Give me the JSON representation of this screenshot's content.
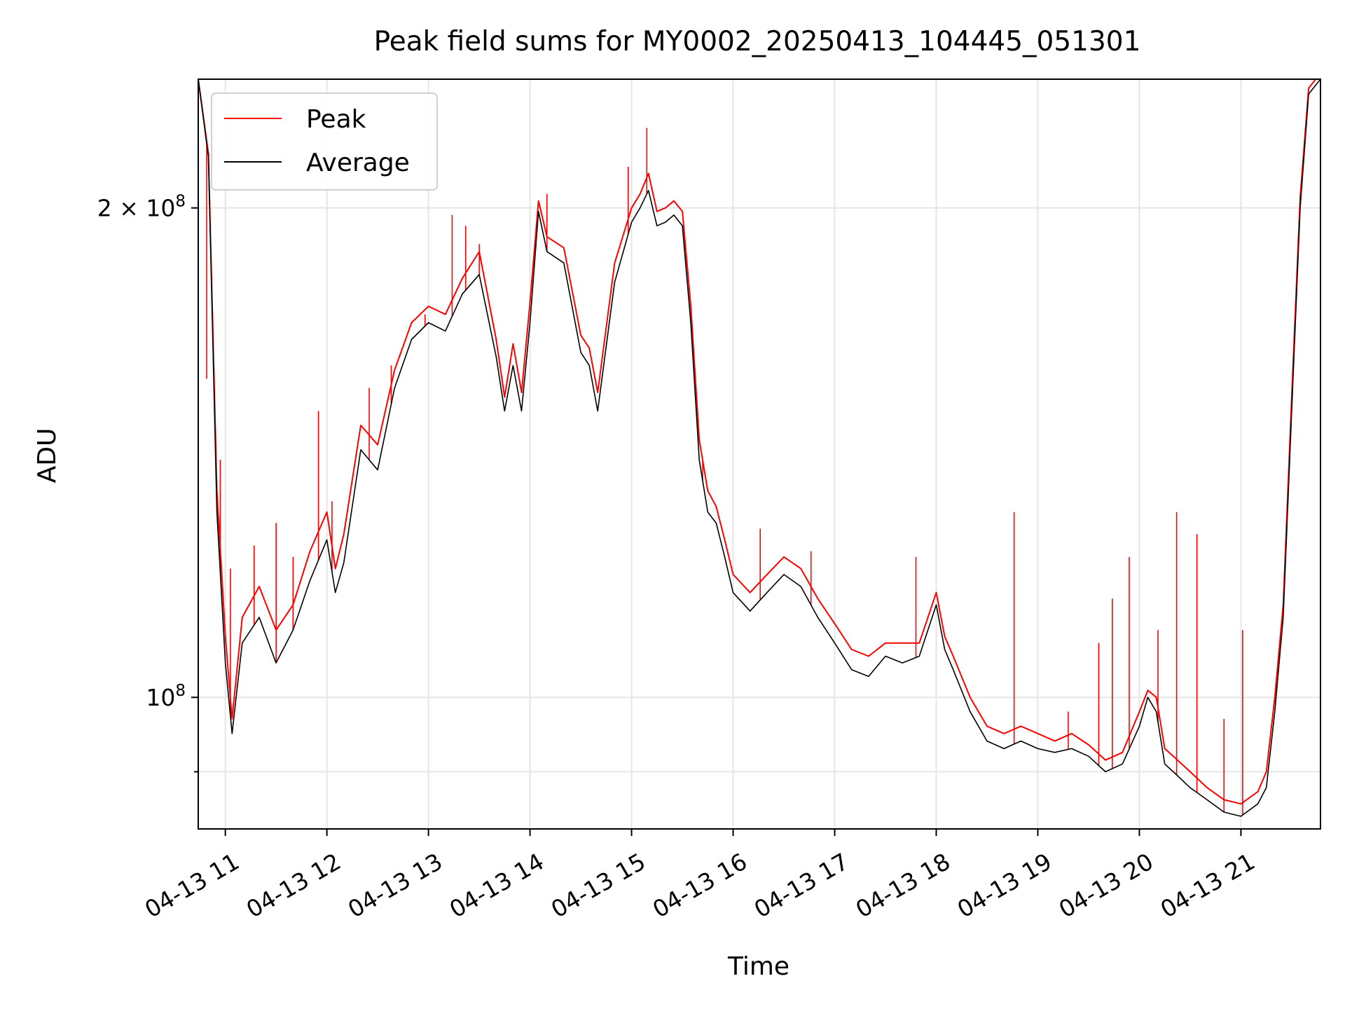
{
  "chart_data": {
    "type": "line",
    "title": "Peak field sums for MY0002_20250413_104445_051301",
    "xlabel": "Time",
    "ylabel": "ADU",
    "yscale": "log",
    "ylim": [
      83000000.0,
      240000000.0
    ],
    "xlim": [
      "04-13 10:44",
      "04-13 21:47"
    ],
    "grid": true,
    "legend_position": "top-left",
    "x_ticks": [
      "04-13 11",
      "04-13 12",
      "04-13 13",
      "04-13 14",
      "04-13 15",
      "04-13 16",
      "04-13 17",
      "04-13 18",
      "04-13 19",
      "04-13 20",
      "04-13 21"
    ],
    "y_ticks": [
      {
        "value": 100000000,
        "base": "10",
        "exp": "8",
        "coef": ""
      },
      {
        "value": 200000000,
        "base": "10",
        "exp": "8",
        "coef": "2 × "
      }
    ],
    "x": [
      "10:44",
      "10:50",
      "10:55",
      "11:00",
      "11:04",
      "11:10",
      "11:20",
      "11:30",
      "11:40",
      "11:50",
      "12:00",
      "12:05",
      "12:10",
      "12:20",
      "12:30",
      "12:40",
      "12:50",
      "13:00",
      "13:10",
      "13:20",
      "13:30",
      "13:40",
      "13:45",
      "13:50",
      "13:55",
      "14:00",
      "14:05",
      "14:10",
      "14:20",
      "14:30",
      "14:35",
      "14:40",
      "14:50",
      "15:00",
      "15:05",
      "15:10",
      "15:15",
      "15:20",
      "15:25",
      "15:30",
      "15:35",
      "15:40",
      "15:45",
      "15:50",
      "15:55",
      "16:00",
      "16:10",
      "16:20",
      "16:30",
      "16:40",
      "16:50",
      "17:00",
      "17:10",
      "17:20",
      "17:30",
      "17:40",
      "17:50",
      "18:00",
      "18:05",
      "18:10",
      "18:20",
      "18:30",
      "18:40",
      "18:50",
      "19:00",
      "19:10",
      "19:20",
      "19:30",
      "19:40",
      "19:50",
      "20:00",
      "20:05",
      "20:10",
      "20:15",
      "20:20",
      "20:30",
      "20:40",
      "20:50",
      "21:00",
      "21:10",
      "21:15",
      "21:20",
      "21:25",
      "21:30",
      "21:35",
      "21:40",
      "21:47"
    ],
    "series": [
      {
        "name": "Average",
        "color": "#000000",
        "values": [
          240000000,
          215000000,
          130000000,
          105000000,
          95000000,
          108000000,
          112000000,
          105000000,
          110000000,
          118000000,
          125000000,
          116000000,
          121000000,
          142000000,
          138000000,
          155000000,
          166000000,
          170000000,
          168000000,
          177000000,
          182000000,
          162000000,
          150000000,
          160000000,
          150000000,
          170000000,
          199000000,
          188000000,
          185000000,
          163000000,
          160000000,
          150000000,
          180000000,
          196000000,
          200000000,
          205000000,
          195000000,
          196000000,
          198000000,
          195000000,
          170000000,
          140000000,
          130000000,
          128000000,
          122000000,
          116000000,
          113000000,
          116000000,
          119000000,
          117000000,
          112000000,
          108000000,
          104000000,
          103000000,
          106000000,
          105000000,
          106000000,
          114000000,
          107000000,
          104000000,
          98000000,
          94000000,
          93000000,
          94000000,
          93000000,
          92500000,
          93000000,
          92000000,
          90000000,
          91000000,
          96000000,
          100000000,
          98000000,
          91000000,
          90000000,
          88000000,
          86500000,
          85000000,
          84500000,
          86000000,
          88000000,
          98000000,
          112000000,
          150000000,
          200000000,
          235000000,
          240000000
        ]
      },
      {
        "name": "Peak",
        "color": "#ff0000",
        "values": [
          240000000,
          216000000,
          134000000,
          109000000,
          97000000,
          112000000,
          117000000,
          110000000,
          114000000,
          123000000,
          130000000,
          120000000,
          126000000,
          147000000,
          143000000,
          159000000,
          170000000,
          174000000,
          172000000,
          181000000,
          188000000,
          166000000,
          153000000,
          165000000,
          154000000,
          175000000,
          202000000,
          192000000,
          189000000,
          167000000,
          164000000,
          154000000,
          185000000,
          200000000,
          204000000,
          210000000,
          199000000,
          200000000,
          202000000,
          199000000,
          174000000,
          144000000,
          134000000,
          131000000,
          125000000,
          119000000,
          116000000,
          119000000,
          122000000,
          120000000,
          115000000,
          111000000,
          107000000,
          106000000,
          108000000,
          108000000,
          108000000,
          116000000,
          109000000,
          106000000,
          100000000,
          96000000,
          95000000,
          96000000,
          95000000,
          94000000,
          95000000,
          93500000,
          91500000,
          92500000,
          98000000,
          101000000,
          100000000,
          93000000,
          92000000,
          90000000,
          88000000,
          86500000,
          86000000,
          87500000,
          90000000,
          100000000,
          114000000,
          153000000,
          203000000,
          237000000,
          242000000
        ]
      }
    ],
    "peak_spikes": [
      {
        "x": "10:49",
        "y": 157000000
      },
      {
        "x": "10:57",
        "y": 140000000
      },
      {
        "x": "11:03",
        "y": 120000000
      },
      {
        "x": "11:17",
        "y": 124000000
      },
      {
        "x": "11:30",
        "y": 128000000
      },
      {
        "x": "11:40",
        "y": 122000000
      },
      {
        "x": "11:55",
        "y": 150000000
      },
      {
        "x": "12:03",
        "y": 132000000
      },
      {
        "x": "12:25",
        "y": 155000000
      },
      {
        "x": "12:38",
        "y": 160000000
      },
      {
        "x": "12:58",
        "y": 172000000
      },
      {
        "x": "13:14",
        "y": 198000000
      },
      {
        "x": "13:22",
        "y": 195000000
      },
      {
        "x": "13:30",
        "y": 190000000
      },
      {
        "x": "14:10",
        "y": 204000000
      },
      {
        "x": "14:58",
        "y": 212000000
      },
      {
        "x": "15:09",
        "y": 224000000
      },
      {
        "x": "15:42",
        "y": 140000000
      },
      {
        "x": "16:16",
        "y": 127000000
      },
      {
        "x": "16:46",
        "y": 123000000
      },
      {
        "x": "17:48",
        "y": 122000000
      },
      {
        "x": "18:46",
        "y": 130000000
      },
      {
        "x": "19:18",
        "y": 98000000
      },
      {
        "x": "19:36",
        "y": 108000000
      },
      {
        "x": "19:44",
        "y": 115000000
      },
      {
        "x": "19:54",
        "y": 122000000
      },
      {
        "x": "20:11",
        "y": 110000000
      },
      {
        "x": "20:22",
        "y": 130000000
      },
      {
        "x": "20:34",
        "y": 126000000
      },
      {
        "x": "20:50",
        "y": 97000000
      },
      {
        "x": "21:01",
        "y": 110000000
      }
    ]
  }
}
